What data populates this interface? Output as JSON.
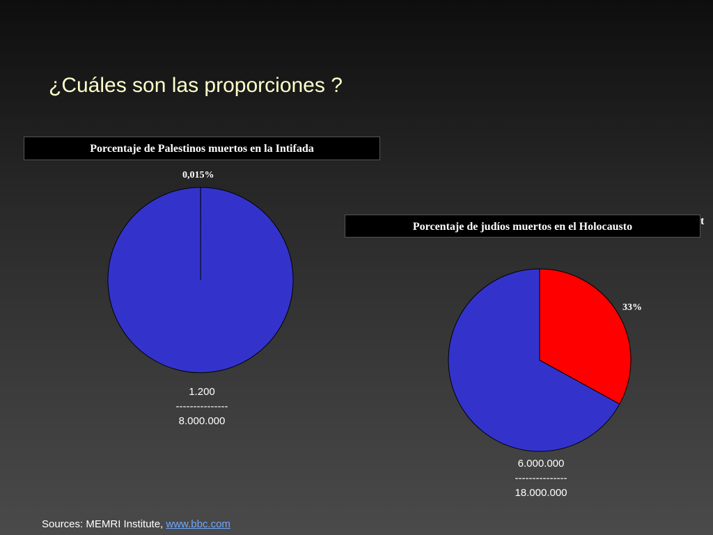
{
  "slide": {
    "title": "¿Cuáles son las proporciones ?",
    "stray_text": "t"
  },
  "sources": {
    "prefix": "Sources: MEMRI Institute, ",
    "link_text": "www.bbc.com"
  },
  "colors": {
    "title": "#ffffcc",
    "pie_blue": "#3333cc",
    "pie_red": "#ff0000",
    "header_bg": "#000000"
  },
  "chart_data": [
    {
      "type": "pie",
      "title": "Porcentaje de Palestinos muertos en la Intifada",
      "slices": [
        {
          "label": "0,015%",
          "value": 0.015,
          "color": "#3333cc"
        },
        {
          "label": "",
          "value": 99.985,
          "color": "#3333cc"
        }
      ],
      "fraction": {
        "numerator": "1.200",
        "divider": "---------------",
        "denominator": "8.000.000"
      }
    },
    {
      "type": "pie",
      "title": "Porcentaje de judíos muertos en el Holocausto",
      "slices": [
        {
          "label": "33%",
          "value": 33,
          "color": "#ff0000"
        },
        {
          "label": "",
          "value": 67,
          "color": "#3333cc"
        }
      ],
      "fraction": {
        "numerator": "6.000.000",
        "divider": "---------------",
        "denominator": "18.000.000"
      }
    }
  ]
}
